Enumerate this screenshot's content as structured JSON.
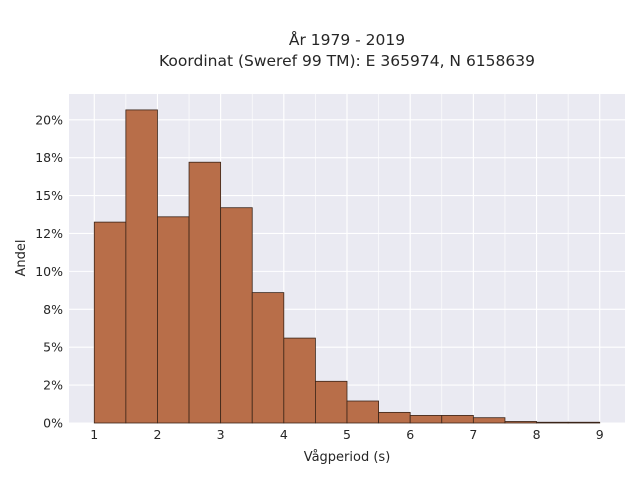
{
  "chart_data": {
    "type": "bar",
    "title_lines": [
      "År 1979 - 2019",
      "Koordinat (Sweref 99 TM): E 365974, N 6158639"
    ],
    "xlabel": "Vågperiod (s)",
    "ylabel": "Andel",
    "x_ticks": [
      1,
      2,
      3,
      4,
      5,
      6,
      7,
      8,
      9
    ],
    "y_ticks": [
      0,
      2.5,
      5,
      7.5,
      10,
      12.5,
      15,
      17.5,
      20
    ],
    "y_tick_labels": [
      "0%",
      "2%",
      "5%",
      "8%",
      "10%",
      "12%",
      "15%",
      "18%",
      "20%"
    ],
    "xlim": [
      0.6,
      9.4
    ],
    "ylim": [
      0,
      21.7
    ],
    "bin_edges": [
      1.0,
      1.5,
      2.0,
      2.5,
      3.0,
      3.5,
      4.0,
      4.5,
      5.0,
      5.5,
      6.0,
      6.5,
      7.0,
      7.5,
      8.0,
      8.5,
      9.0
    ],
    "values": [
      13.25,
      20.65,
      13.6,
      17.2,
      14.2,
      8.6,
      5.6,
      2.75,
      1.45,
      0.7,
      0.5,
      0.5,
      0.35,
      0.1,
      0.05,
      0.05
    ],
    "bar_color": "#b86e49",
    "bar_edge_color": "#3a2418",
    "plot_background": "#eaeaf2",
    "grid": true,
    "grid_color": "#ffffff"
  }
}
